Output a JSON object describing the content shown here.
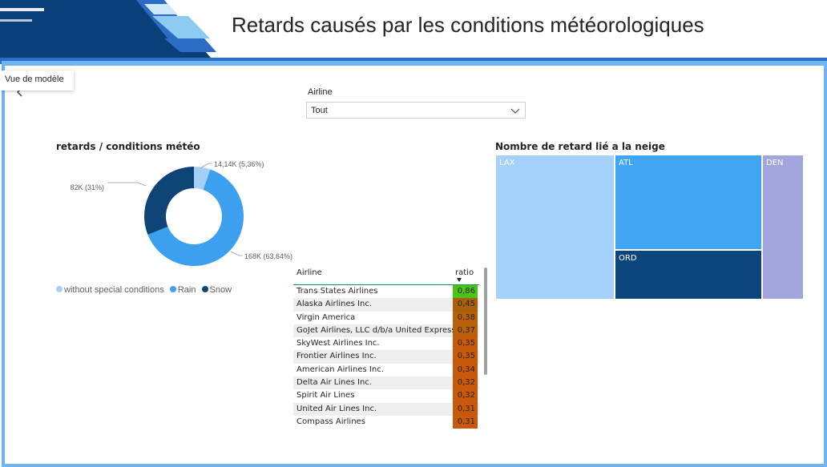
{
  "header": {
    "title": "Retards causés par les conditions météorologiques",
    "tooltip": "Vue de modèle"
  },
  "colors": {
    "brand_dark": "#0b3f7a",
    "brand_mid": "#2b6cc4",
    "brand_light": "#8ecbf2",
    "frame": "#6fb4f2"
  },
  "slicer": {
    "label": "Airline",
    "value": "Tout"
  },
  "donut": {
    "title": "retards / conditions météo",
    "labels": {
      "snow": "82K (31%)",
      "without": "14,14K (5,36%)",
      "rain": "168K (63,64%)"
    },
    "legend": [
      "without special conditions",
      "Rain",
      "Snow"
    ]
  },
  "treemap": {
    "title": "Nombre de retard lié a la neige",
    "tiles": [
      "LAX",
      "ATL",
      "ORD",
      "DEN"
    ]
  },
  "table": {
    "col_airline": "Airline",
    "col_ratio": "ratio",
    "rows": [
      {
        "name": "Trans States Airlines",
        "ratio": "0,86"
      },
      {
        "name": "Alaska Airlines Inc.",
        "ratio": "0,45"
      },
      {
        "name": "Virgin America",
        "ratio": "0,38"
      },
      {
        "name": "GoJet Airlines, LLC d/b/a United Express",
        "ratio": "0,37"
      },
      {
        "name": "SkyWest Airlines Inc.",
        "ratio": "0,35"
      },
      {
        "name": "Frontier Airlines Inc.",
        "ratio": "0,35"
      },
      {
        "name": "American Airlines Inc.",
        "ratio": "0,34"
      },
      {
        "name": "Delta Air Lines Inc.",
        "ratio": "0,32"
      },
      {
        "name": "Spirit Air Lines",
        "ratio": "0,32"
      },
      {
        "name": "United Air Lines Inc.",
        "ratio": "0,31"
      },
      {
        "name": "Compass Airlines",
        "ratio": "0,31"
      }
    ]
  },
  "chart_data": [
    {
      "type": "pie",
      "title": "retards / conditions météo",
      "categories": [
        "without special conditions",
        "Rain",
        "Snow"
      ],
      "values": [
        14140,
        168000,
        82000
      ],
      "percentages": [
        5.36,
        63.64,
        31
      ],
      "colors": [
        "#a4d0f5",
        "#3c9ff0",
        "#0e4478"
      ],
      "legend": "bottom-left"
    },
    {
      "type": "treemap",
      "title": "Nombre de retard lié a la neige",
      "categories": [
        "LAX",
        "ATL",
        "ORD",
        "DEN"
      ],
      "colors": [
        "#a3d1fa",
        "#41a5f6",
        "#0d467d",
        "#a2a6dc"
      ]
    }
  ]
}
